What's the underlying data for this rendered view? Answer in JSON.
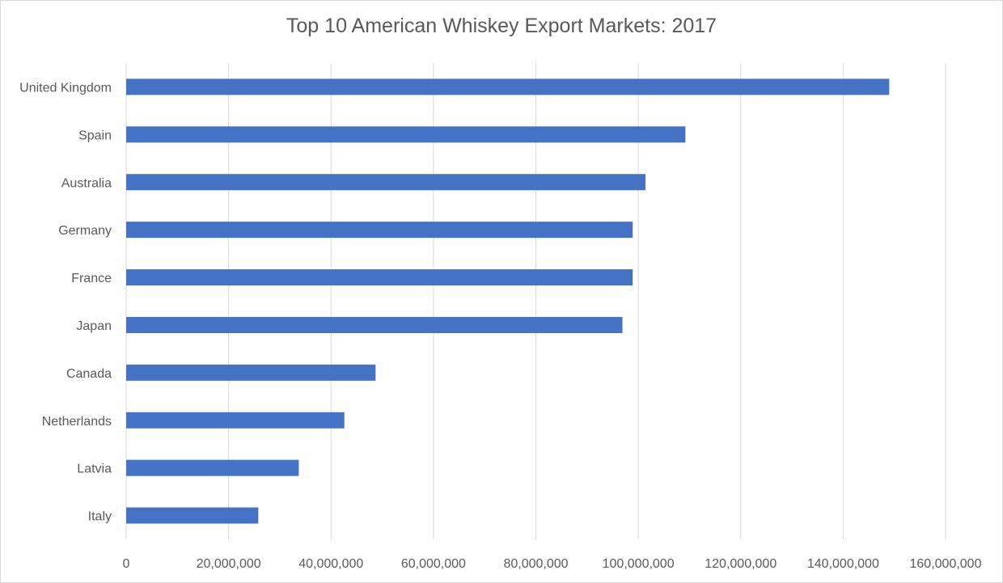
{
  "chart_data": {
    "type": "bar",
    "orientation": "horizontal",
    "title": "Top 10 American Whiskey Export Markets: 2017",
    "xlabel": "",
    "ylabel": "",
    "categories": [
      "United Kingdom",
      "Spain",
      "Australia",
      "Germany",
      "France",
      "Japan",
      "Canada",
      "Netherlands",
      "Latvia",
      "Italy"
    ],
    "values": [
      149000000,
      109200000,
      101400000,
      98900000,
      98900000,
      96900000,
      48700000,
      42600000,
      33700000,
      25800000
    ],
    "xlim": [
      0,
      160000000
    ],
    "ticks": [
      0,
      20000000,
      40000000,
      60000000,
      80000000,
      100000000,
      120000000,
      140000000,
      160000000
    ],
    "tick_labels": [
      "0",
      "20,000,000",
      "40,000,000",
      "60,000,000",
      "80,000,000",
      "100,000,000",
      "120,000,000",
      "140,000,000",
      "160,000,000"
    ],
    "grid": true,
    "legend": "none",
    "bar_color": "#4472c4",
    "grid_color": "#d9d9d9",
    "text_color": "#595959"
  }
}
